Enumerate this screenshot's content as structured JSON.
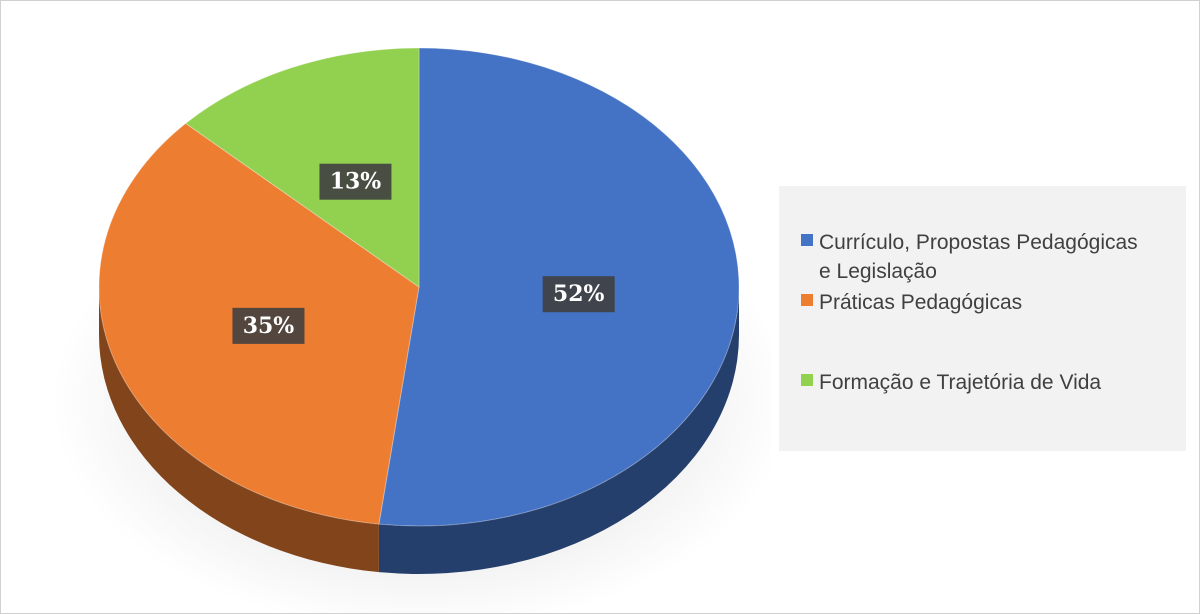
{
  "chart_data": {
    "type": "pie",
    "categories": [
      "Currículo, Propostas Pedagógicas e Legislação",
      "Práticas Pedagógicas",
      "Formação e Trajetória de Vida"
    ],
    "values": [
      52,
      35,
      13
    ],
    "value_labels": [
      "52%",
      "35%",
      "13%"
    ],
    "colors": [
      "#4472c4",
      "#ed7d31",
      "#92d050"
    ],
    "legend": "right"
  }
}
